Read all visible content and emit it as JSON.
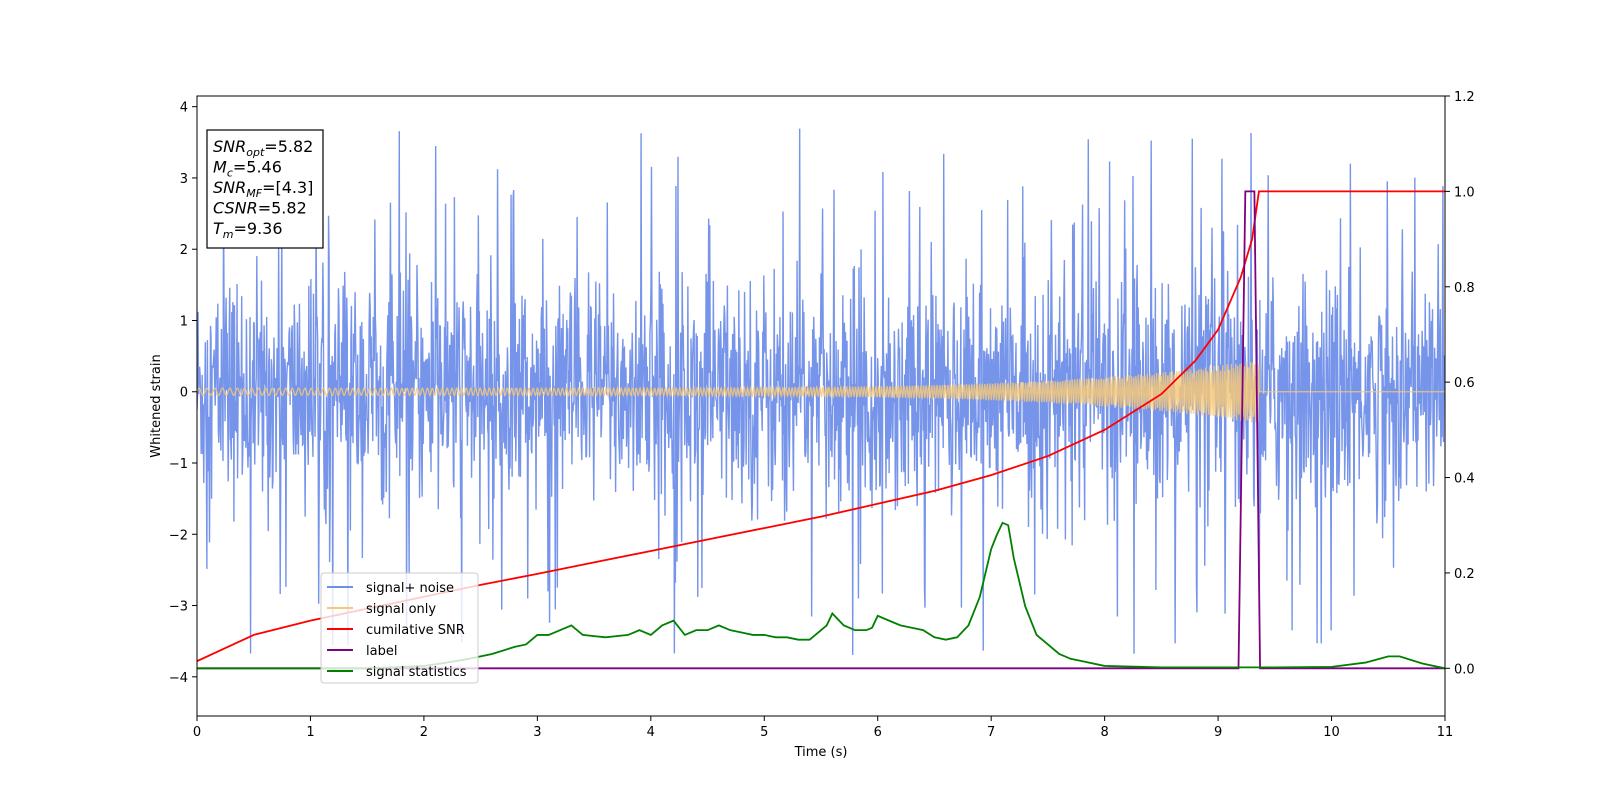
{
  "chart_data": {
    "type": "line",
    "xlabel": "Time (s)",
    "ylabel": "Whitened strain",
    "xlim": [
      0,
      11
    ],
    "ylim_left": [
      -4.55,
      4.15
    ],
    "ylim_right": [
      -0.1,
      1.2
    ],
    "x_ticks": [
      0,
      1,
      2,
      3,
      4,
      5,
      6,
      7,
      8,
      9,
      10,
      11
    ],
    "y_ticks_left": [
      -4,
      -3,
      -2,
      -1,
      0,
      1,
      2,
      3,
      4
    ],
    "y_ticks_right": [
      0.0,
      0.2,
      0.4,
      0.6,
      0.8,
      1.0,
      1.2
    ],
    "legend_position": "lower-left",
    "annotation": {
      "lines": [
        {
          "key": "snr_opt",
          "base": "SNR",
          "sub": "opt",
          "value": "=5.82"
        },
        {
          "key": "mc",
          "base": "M",
          "sub": "c",
          "value": "=5.46"
        },
        {
          "key": "snr_mf",
          "base": "SNR",
          "sub": "MF",
          "value": "=[4.3]"
        },
        {
          "key": "csnr",
          "base": "CSNR",
          "sub": "",
          "value": "=5.82"
        },
        {
          "key": "tm",
          "base": "T",
          "sub": "m",
          "value": "=9.36"
        }
      ]
    },
    "series": [
      {
        "name": "signal+ noise",
        "axis": "left",
        "color": "#6f8ee8",
        "kind": "noise",
        "amplitude_typical": 1.3,
        "amplitude_peak": 3.7
      },
      {
        "name": "signal only",
        "axis": "left",
        "color": "#f5c87a",
        "kind": "chirp",
        "t_merger": 9.36,
        "amplitude_start": 0.05,
        "amplitude_end": 0.45
      },
      {
        "name": "cumilative SNR",
        "axis": "right",
        "color": "#ff0000",
        "x": [
          0,
          0.5,
          1,
          1.5,
          2,
          2.5,
          3,
          3.5,
          4,
          4.5,
          5,
          5.5,
          6,
          6.5,
          7,
          7.5,
          8,
          8.5,
          8.8,
          9.0,
          9.2,
          9.3,
          9.36,
          11
        ],
        "y": [
          0.015,
          0.07,
          0.1,
          0.125,
          0.15,
          0.175,
          0.198,
          0.222,
          0.246,
          0.27,
          0.294,
          0.318,
          0.345,
          0.372,
          0.405,
          0.445,
          0.5,
          0.575,
          0.645,
          0.71,
          0.82,
          0.9,
          1.0,
          1.0
        ]
      },
      {
        "name": "label",
        "axis": "right",
        "color": "#800080",
        "x": [
          0,
          9.18,
          9.24,
          9.32,
          9.37,
          11
        ],
        "y": [
          0.0,
          0.0,
          1.0,
          1.0,
          0.0,
          0.0
        ]
      },
      {
        "name": "signal statistics",
        "axis": "right",
        "color": "#008000",
        "x": [
          0,
          0.5,
          1,
          1.5,
          2,
          2.2,
          2.4,
          2.6,
          2.8,
          2.9,
          3.0,
          3.1,
          3.2,
          3.3,
          3.4,
          3.6,
          3.8,
          3.9,
          4.0,
          4.1,
          4.2,
          4.3,
          4.4,
          4.5,
          4.6,
          4.7,
          4.8,
          4.9,
          5.0,
          5.1,
          5.2,
          5.3,
          5.4,
          5.5,
          5.55,
          5.6,
          5.7,
          5.8,
          5.9,
          5.95,
          6.0,
          6.1,
          6.2,
          6.3,
          6.4,
          6.5,
          6.6,
          6.7,
          6.8,
          6.9,
          7.0,
          7.05,
          7.1,
          7.15,
          7.2,
          7.3,
          7.4,
          7.5,
          7.6,
          7.7,
          7.8,
          8.0,
          8.5,
          9.0,
          9.5,
          10.0,
          10.3,
          10.5,
          10.6,
          10.8,
          11
        ],
        "y": [
          0.0,
          0.0,
          0.0,
          0.0,
          0.005,
          0.012,
          0.02,
          0.03,
          0.045,
          0.05,
          0.07,
          0.07,
          0.08,
          0.09,
          0.07,
          0.065,
          0.07,
          0.08,
          0.07,
          0.09,
          0.1,
          0.07,
          0.08,
          0.08,
          0.09,
          0.08,
          0.075,
          0.07,
          0.07,
          0.065,
          0.065,
          0.06,
          0.06,
          0.08,
          0.09,
          0.115,
          0.09,
          0.08,
          0.08,
          0.085,
          0.11,
          0.1,
          0.09,
          0.085,
          0.08,
          0.065,
          0.06,
          0.065,
          0.09,
          0.15,
          0.25,
          0.28,
          0.305,
          0.3,
          0.23,
          0.13,
          0.07,
          0.05,
          0.03,
          0.02,
          0.015,
          0.005,
          0.002,
          0.002,
          0.002,
          0.003,
          0.012,
          0.025,
          0.025,
          0.01,
          0.0
        ]
      }
    ]
  }
}
